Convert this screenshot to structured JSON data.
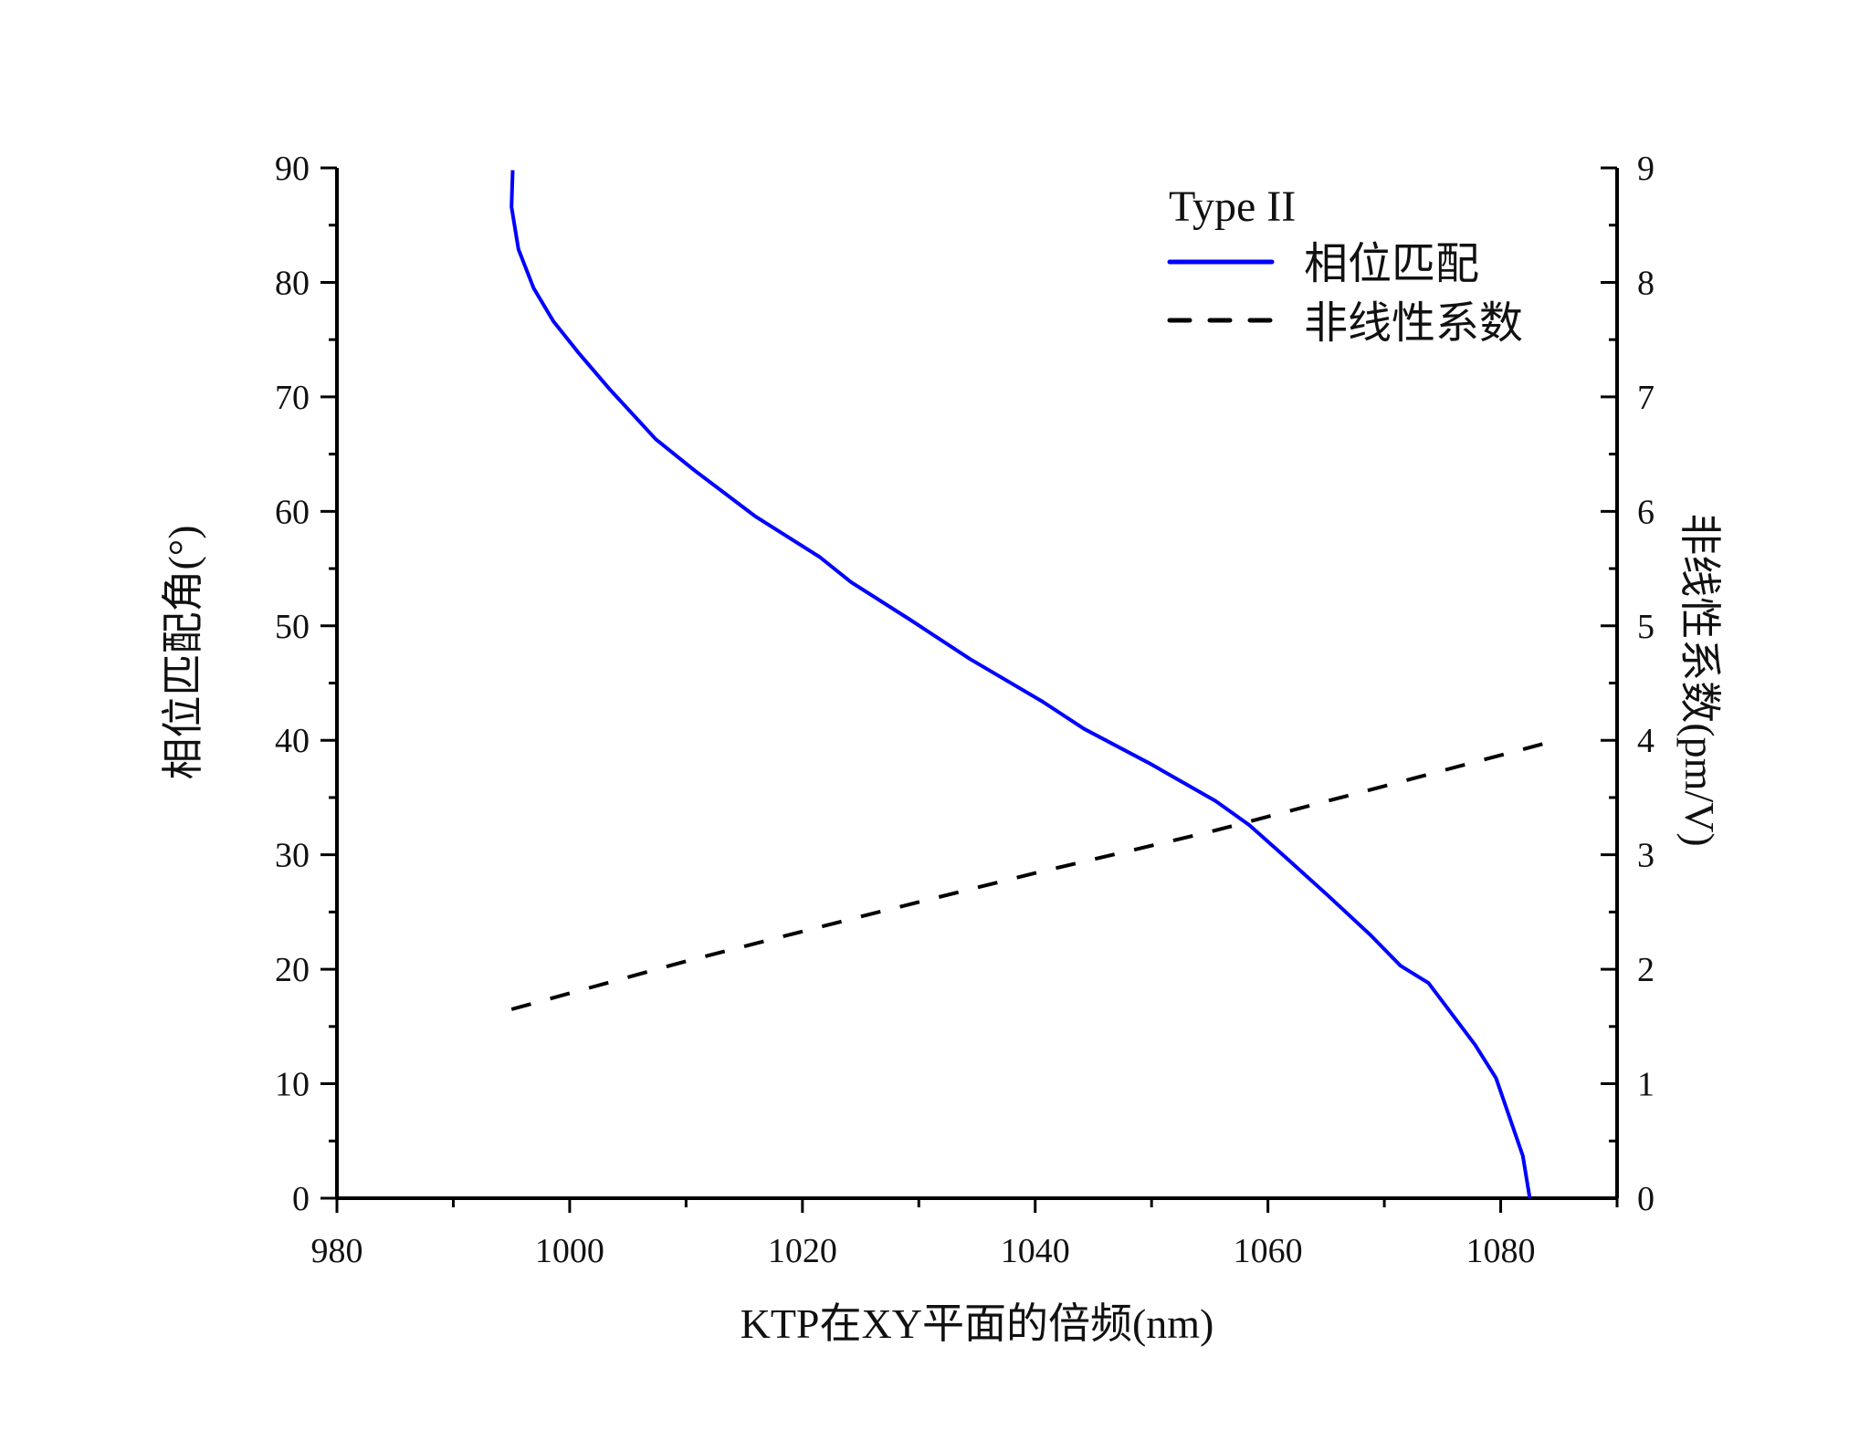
{
  "chart_data": {
    "type": "line",
    "title": "",
    "xlabel": "KTP在XY平面的倍频(nm)",
    "ylabel": "相位匹配角(°)",
    "y2label": "非线性系数(pm/V)",
    "xlim": [
      980,
      1090
    ],
    "ylim": [
      0,
      90
    ],
    "y2lim": [
      0,
      9
    ],
    "xticks": [
      980,
      1000,
      1020,
      1040,
      1060,
      1080
    ],
    "yticks": [
      0,
      10,
      20,
      30,
      40,
      50,
      60,
      70,
      80,
      90
    ],
    "y2ticks": [
      0,
      1,
      2,
      3,
      4,
      5,
      6,
      7,
      8,
      9
    ],
    "grid": false,
    "legend": {
      "placement": "top-right",
      "title": "Type II"
    },
    "series": [
      {
        "name": "相位匹配",
        "axis": "left",
        "color": "#0000ff",
        "style": "solid",
        "x": [
          995.1,
          995.0,
          995.6,
          996.9,
          998.6,
          1000.8,
          1003.5,
          1007.4,
          1010.7,
          1015.9,
          1021.5,
          1024.2,
          1029.3,
          1034.4,
          1040.6,
          1044.2,
          1049.8,
          1055.5,
          1058.4,
          1061.6,
          1065.2,
          1068.8,
          1071.4,
          1073.8,
          1077.8,
          1079.6,
          1081.9,
          1082.5
        ],
        "y": [
          89.8,
          86.6,
          82.9,
          79.5,
          76.6,
          73.8,
          70.6,
          66.3,
          63.6,
          59.6,
          56.0,
          53.8,
          50.5,
          47.1,
          43.4,
          41.0,
          38.0,
          34.7,
          32.6,
          29.7,
          26.4,
          23.0,
          20.3,
          18.8,
          13.4,
          10.5,
          3.7,
          0.0
        ]
      },
      {
        "name": "非线性系数",
        "axis": "right",
        "color": "#000000",
        "style": "dashed",
        "x": [
          995.0,
          1010,
          1025,
          1040,
          1055,
          1070,
          1083.7
        ],
        "y": [
          1.65,
          2.07,
          2.46,
          2.84,
          3.2,
          3.6,
          3.97
        ]
      }
    ]
  }
}
